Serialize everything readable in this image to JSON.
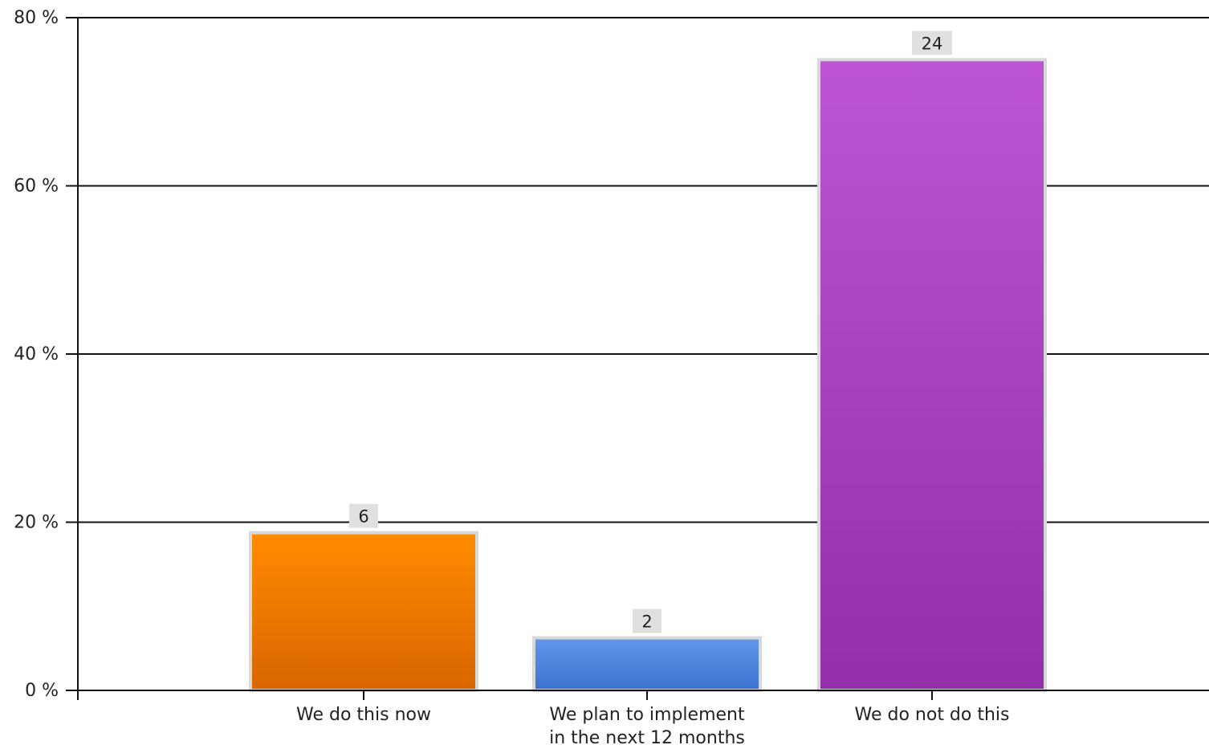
{
  "chart_data": {
    "type": "bar",
    "title": "",
    "xlabel": "",
    "ylabel": "",
    "ylim": [
      0,
      80
    ],
    "y_ticks": [
      0,
      20,
      40,
      60,
      80
    ],
    "y_tick_labels": [
      "0 %",
      "20 %",
      "40 %",
      "60 %",
      "80 %"
    ],
    "grid": "horizontal",
    "legend": "none",
    "categories": [
      [
        "We do this now"
      ],
      [
        "We plan to implement",
        "in the next 12 months"
      ],
      [
        "We do not do this"
      ]
    ],
    "values": [
      18.75,
      6.25,
      75
    ],
    "counts": [
      "6",
      "2",
      "24"
    ],
    "colors": [
      {
        "top": "#ff8c00",
        "bottom": "#d96500"
      },
      {
        "top": "#6597e8",
        "bottom": "#3c72d0"
      },
      {
        "top": "#bc55d6",
        "bottom": "#932fa9"
      }
    ],
    "data_label_bg": "#e0e0e0",
    "bar_border": "#d8d8d8"
  }
}
